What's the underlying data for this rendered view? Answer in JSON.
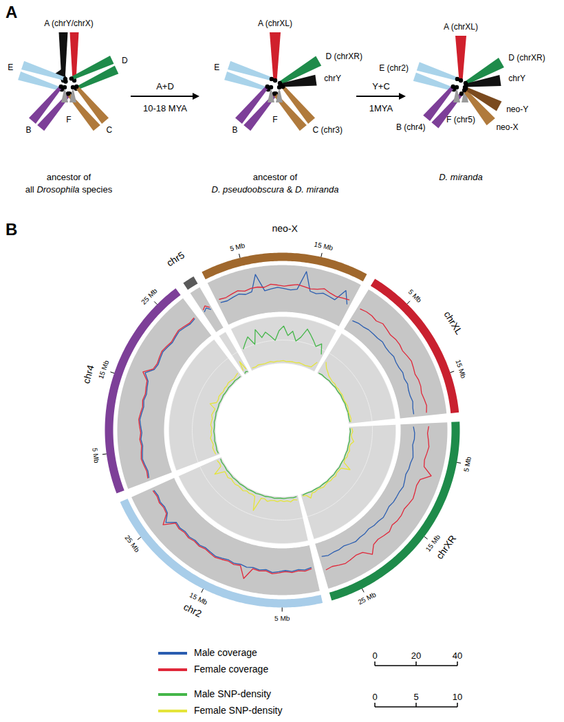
{
  "diagram": {
    "label": "A",
    "karyotypes": [
      {
        "caption": [
          [
            {
              "text": "ancestor of"
            }
          ],
          [
            {
              "text": "all "
            },
            {
              "text": "Drosophila",
              "italic": true
            },
            {
              "text": " species"
            }
          ]
        ],
        "chromosomes": [
          {
            "label": "A (chrY/chrX)",
            "colors": [
              "#111111",
              "#d0202c"
            ]
          },
          {
            "colors": [
              "#111111"
            ]
          },
          {
            "label": "E",
            "colors": [
              "#a9d3ea",
              "#a9d3ea"
            ]
          },
          {
            "label": "D",
            "colors": [
              "#1e8b4a",
              "#1e8b4a"
            ]
          },
          {
            "label": "B",
            "colors": [
              "#7d3f98",
              "#7d3f98"
            ]
          },
          {
            "label": "C",
            "colors": [
              "#b07a3c",
              "#b07a3c"
            ]
          },
          {
            "label": "F",
            "colors": [
              "#9a9a9a",
              "#9a9a9a"
            ]
          }
        ]
      },
      {
        "caption": [
          [
            {
              "text": "ancestor of"
            }
          ],
          [
            {
              "text": "D. pseudoobscura",
              "italic": true
            },
            {
              "text": " & "
            },
            {
              "text": "D. miranda",
              "italic": true
            }
          ]
        ],
        "chromosomes": [
          {
            "label": "A (chrXL)",
            "colors": [
              "#d0202c"
            ]
          },
          {
            "label": "D (chrXR)",
            "colors": [
              "#1e8b4a"
            ]
          },
          {
            "label": "chrY",
            "colors": [
              "#111111"
            ]
          },
          {
            "label": "E",
            "colors": [
              "#a9d3ea",
              "#a9d3ea"
            ]
          },
          {
            "label": "B",
            "colors": [
              "#7d3f98",
              "#7d3f98"
            ]
          },
          {
            "label": "C (chr3)",
            "colors": [
              "#b07a3c",
              "#b07a3c"
            ]
          },
          {
            "label": "F",
            "colors": [
              "#9a9a9a",
              "#9a9a9a"
            ]
          }
        ]
      },
      {
        "caption": [
          [
            {
              "text": "D. miranda",
              "italic": true
            }
          ]
        ],
        "chromosomes": [
          {
            "label": "A (chrXL)",
            "colors": [
              "#d0202c"
            ]
          },
          {
            "label": "D (chrXR)",
            "colors": [
              "#1e8b4a"
            ]
          },
          {
            "label": "chrY",
            "colors": [
              "#111111"
            ]
          },
          {
            "label": "E (chr2)",
            "colors": [
              "#a9d3ea",
              "#a9d3ea"
            ]
          },
          {
            "label": "B (chr4)",
            "colors": [
              "#7d3f98",
              "#7d3f98"
            ]
          },
          {
            "label": "F (chr5)",
            "colors": [
              "#9a9a9a",
              "#9a9a9a"
            ]
          },
          {
            "label": "neo-X",
            "colors": [
              "#b07a3c"
            ]
          },
          {
            "label": "neo-Y",
            "colors": [
              "#7a4a1e"
            ]
          }
        ]
      }
    ],
    "transitions": [
      {
        "above": "A+D",
        "below": "10-18 MYA"
      },
      {
        "above": "Y+C",
        "below": "1MYA"
      }
    ]
  },
  "chart_data": {
    "type": "circos",
    "label": "B",
    "chromosomes": [
      {
        "name": "neo-X",
        "length": 21,
        "color": "#a0682d",
        "ticks": [
          {
            "value": 5,
            "label": "5 Mb"
          },
          {
            "value": 15,
            "label": "15 Mb"
          }
        ],
        "x": [
          0.5,
          1.5,
          2.5,
          3.5,
          4.5,
          5.5,
          6.5,
          7.5,
          8.5,
          9.5,
          10.5,
          11.5,
          12.5,
          13.5,
          14.5,
          15.5,
          16.5,
          17.5,
          18.5,
          19.5,
          20.5
        ]
      },
      {
        "name": "chrXL",
        "length": 20,
        "color": "#c9202f",
        "ticks": [
          {
            "value": 5,
            "label": "5 Mb"
          },
          {
            "value": 15,
            "label": "15 Mb"
          }
        ],
        "x": [
          0.5,
          1.5,
          2.5,
          3.5,
          4.5,
          5.5,
          6.5,
          7.5,
          8.5,
          9.5,
          10.5,
          11.5,
          12.5,
          13.5,
          14.5,
          15.5,
          16.5,
          17.5,
          18.5,
          19.5
        ]
      },
      {
        "name": "chrXR",
        "length": 29,
        "color": "#1e8b4a",
        "ticks": [
          {
            "value": 5,
            "label": "5 Mb"
          },
          {
            "value": 15,
            "label": "15 Mb"
          },
          {
            "value": 25,
            "label": "25 Mb"
          }
        ],
        "x": [
          0.5,
          1.5,
          2.5,
          3.5,
          4.5,
          5.5,
          6.5,
          7.5,
          8.5,
          9.5,
          10.5,
          11.5,
          12.5,
          13.5,
          14.5,
          15.5,
          16.5,
          17.5,
          18.5,
          19.5,
          20.5,
          21.5,
          22.5,
          23.5,
          24.5,
          25.5,
          26.5,
          27.5,
          28.5
        ]
      },
      {
        "name": "chr2",
        "length": 30,
        "color": "#a8cde9",
        "ticks": [
          {
            "value": 5,
            "label": "5 Mb"
          },
          {
            "value": 15,
            "label": "15 Mb"
          },
          {
            "value": 25,
            "label": "25 Mb"
          }
        ],
        "x": [
          0.5,
          1.5,
          2.5,
          3.5,
          4.5,
          5.5,
          6.5,
          7.5,
          8.5,
          9.5,
          10.5,
          11.5,
          12.5,
          13.5,
          14.5,
          15.5,
          16.5,
          17.5,
          18.5,
          19.5,
          20.5,
          21.5,
          22.5,
          23.5,
          24.5,
          25.5,
          26.5,
          27.5,
          28.5,
          29.5
        ]
      },
      {
        "name": "chr4",
        "length": 28,
        "color": "#7d3f98",
        "ticks": [
          {
            "value": 5,
            "label": "5 Mb"
          },
          {
            "value": 15,
            "label": "15 Mb"
          },
          {
            "value": 25,
            "label": "25 Mb"
          }
        ],
        "x": [
          0.5,
          1.5,
          2.5,
          3.5,
          4.5,
          5.5,
          6.5,
          7.5,
          8.5,
          9.5,
          10.5,
          11.5,
          12.5,
          13.5,
          14.5,
          15.5,
          16.5,
          17.5,
          18.5,
          19.5,
          20.5,
          21.5,
          22.5,
          23.5,
          24.5,
          25.5,
          26.5,
          27.5
        ]
      },
      {
        "name": "chr5",
        "length": 1.5,
        "color": "#5a5a5a",
        "ticks": [],
        "x": [
          0.25,
          0.75,
          1.25
        ]
      }
    ],
    "coverage": {
      "ylim": [
        0,
        40
      ],
      "yticks": [
        0,
        20,
        40
      ],
      "series": [
        {
          "name": "Male coverage",
          "color": "#2a5db0",
          "values": {
            "neo-X": [
              20,
              19,
              20,
              21,
              19,
              20,
              34,
              19,
              20,
              21,
              20,
              19,
              20,
              36,
              20,
              19,
              21,
              20,
              19,
              30,
              20
            ],
            "chrXL": [
              10,
              11,
              11,
              12,
              12,
              12,
              13,
              12,
              12,
              13,
              12,
              12,
              13,
              12,
              13,
              12,
              12,
              13,
              12,
              12
            ],
            "chrXR": [
              11,
              12,
              12,
              11,
              12,
              13,
              12,
              12,
              11,
              12,
              13,
              12,
              12,
              12,
              11,
              12,
              13,
              12,
              12,
              11,
              12,
              12,
              13,
              12,
              11,
              12,
              12,
              13,
              12
            ],
            "chr2": [
              19,
              20,
              19,
              20,
              19,
              20,
              21,
              19,
              20,
              19,
              20,
              19,
              20,
              19,
              20,
              21,
              20,
              19,
              20,
              19,
              20,
              19,
              20,
              19,
              26,
              20,
              19,
              20,
              19,
              20
            ],
            "chr4": [
              20,
              19,
              20,
              21,
              20,
              19,
              20,
              19,
              20,
              21,
              20,
              19,
              20,
              19,
              20,
              21,
              26,
              20,
              19,
              20,
              21,
              20,
              19,
              20,
              21,
              20,
              19,
              20
            ],
            "chr5": [
              20,
              22,
              19
            ]
          }
        },
        {
          "name": "Female coverage",
          "color": "#e0283a",
          "values": {
            "neo-X": [
              23,
              22,
              23,
              24,
              22,
              23,
              23,
              22,
              24,
              23,
              22,
              23,
              24,
              23,
              22,
              23,
              25,
              23,
              22,
              23,
              24
            ],
            "chrXL": [
              22,
              23,
              23,
              22,
              24,
              23,
              22,
              23,
              23,
              22,
              23,
              24,
              23,
              22,
              23,
              23,
              22,
              23,
              24,
              23
            ],
            "chrXR": [
              24,
              23,
              24,
              25,
              24,
              23,
              24,
              32,
              24,
              23,
              24,
              25,
              24,
              23,
              24,
              24,
              23,
              25,
              24,
              23,
              24,
              30,
              24,
              23,
              24,
              25,
              24,
              23,
              24
            ],
            "chr2": [
              20,
              21,
              20,
              21,
              20,
              21,
              22,
              20,
              21,
              20,
              30,
              20,
              21,
              20,
              21,
              22,
              21,
              20,
              21,
              20,
              21,
              20,
              21,
              20,
              29,
              21,
              20,
              21,
              20,
              21
            ],
            "chr4": [
              21,
              20,
              21,
              22,
              21,
              20,
              21,
              20,
              21,
              22,
              21,
              20,
              21,
              20,
              21,
              22,
              28,
              21,
              20,
              21,
              22,
              21,
              20,
              21,
              22,
              21,
              20,
              21
            ],
            "chr5": [
              22,
              24,
              21
            ]
          }
        }
      ]
    },
    "snp_density": {
      "ylim": [
        0,
        10
      ],
      "yticks": [
        0,
        5,
        10
      ],
      "series": [
        {
          "name": "Male SNP-density",
          "color": "#44b649",
          "values": {
            "neo-X": [
              5,
              6,
              7,
              5,
              8,
              6,
              7,
              6,
              5,
              7,
              8,
              6,
              7,
              5,
              6,
              8,
              7,
              6,
              5,
              6,
              4
            ],
            "chrXL": [
              0.2,
              0.3,
              0.2,
              0.2,
              0.3,
              0.2,
              0.2,
              0.3,
              0.2,
              0.2,
              0.3,
              0.2,
              0.2,
              0.3,
              0.2,
              0.2,
              0.3,
              0.2,
              0.2,
              0.3
            ],
            "chrXR": [
              0.2,
              0.3,
              0.2,
              0.2,
              0.3,
              0.2,
              0.2,
              0.3,
              0.2,
              0.2,
              0.3,
              0.2,
              0.2,
              0.3,
              0.2,
              0.2,
              0.3,
              0.2,
              0.2,
              0.3,
              0.2,
              0.2,
              0.3,
              0.2,
              0.2,
              0.3,
              0.2,
              0.2,
              0.3
            ],
            "chr2": [
              0.3,
              0.4,
              0.3,
              0.3,
              0.4,
              0.3,
              0.3,
              0.4,
              0.3,
              0.3,
              0.4,
              0.3,
              0.3,
              0.4,
              0.3,
              0.3,
              0.4,
              0.3,
              0.3,
              0.4,
              0.3,
              0.3,
              0.4,
              0.3,
              0.3,
              0.4,
              0.3,
              0.3,
              0.4,
              0.3
            ],
            "chr4": [
              0.3,
              0.4,
              0.3,
              0.3,
              0.4,
              0.3,
              0.3,
              0.4,
              0.3,
              0.3,
              0.4,
              0.3,
              0.3,
              0.4,
              0.3,
              0.3,
              0.4,
              0.3,
              0.3,
              0.4,
              0.3,
              0.3,
              0.4,
              0.3,
              0.3,
              0.4,
              0.3,
              0.3
            ],
            "chr5": [
              0.3,
              0.5,
              0.3
            ]
          }
        },
        {
          "name": "Female SNP-density",
          "color": "#e5e53a",
          "values": {
            "neo-X": [
              0.5,
              0.4,
              0.6,
              0.5,
              0.4,
              0.5,
              0.6,
              0.4,
              0.5,
              0.5,
              0.6,
              0.4,
              0.5,
              0.5,
              0.4,
              0.6,
              0.5,
              0.4,
              0.5,
              0.6,
              2
            ],
            "chrXL": [
              3,
              2,
              1.5,
              1,
              0.8,
              0.6,
              0.7,
              0.5,
              0.6,
              0.5,
              0.6,
              0.5,
              0.4,
              0.5,
              0.6,
              0.5,
              0.4,
              0.5,
              0.6,
              0.5
            ],
            "chrXR": [
              0.6,
              0.8,
              0.5,
              0.7,
              1.2,
              0.6,
              0.5,
              0.8,
              0.6,
              0.7,
              0.5,
              0.6,
              2.5,
              0.7,
              0.6,
              0.5,
              0.8,
              0.6,
              0.7,
              0.5,
              0.6,
              0.8,
              0.6,
              0.5,
              0.7,
              0.6,
              1.5,
              0.6,
              0.5
            ],
            "chr2": [
              1,
              0.8,
              1.2,
              0.9,
              1,
              0.8,
              1.1,
              0.9,
              1,
              1.3,
              0.9,
              1,
              4,
              1.1,
              0.9,
              1,
              0.8,
              1.2,
              1,
              0.9,
              1.1,
              1,
              0.8,
              1.2,
              1,
              0.9,
              3,
              1,
              0.9,
              1.1
            ],
            "chr4": [
              0.9,
              1,
              1.1,
              0.8,
              1,
              1.2,
              0.9,
              1,
              0.8,
              1.1,
              1,
              0.9,
              1.2,
              1,
              0.8,
              2.2,
              1,
              0.9,
              1.1,
              1,
              0.8,
              1,
              0.9,
              1.1,
              1,
              0.8,
              1,
              1.2
            ],
            "chr5": [
              1,
              3,
              1
            ]
          }
        }
      ]
    }
  }
}
